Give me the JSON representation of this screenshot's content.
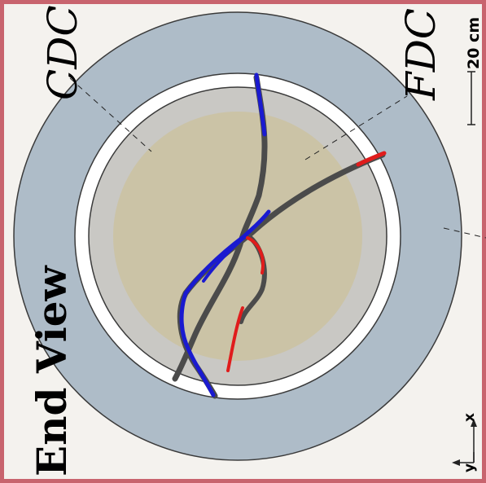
{
  "view_title": "End View",
  "detector_labels": {
    "outer": "CDC",
    "inner": "FDC"
  },
  "scale_bar": {
    "label": "20 cm"
  },
  "axes": {
    "x_label": "x",
    "y_label": "y"
  },
  "colors": {
    "frame": "#c8646e",
    "cdc_ring": "#aebcc8",
    "fdc_outer_zone": "#c9c8c4",
    "fdc_core": "#cbc3a6",
    "track_gray": "#4b4b4b",
    "track_blue": "#1a1ad0",
    "track_red": "#e01c1c"
  }
}
